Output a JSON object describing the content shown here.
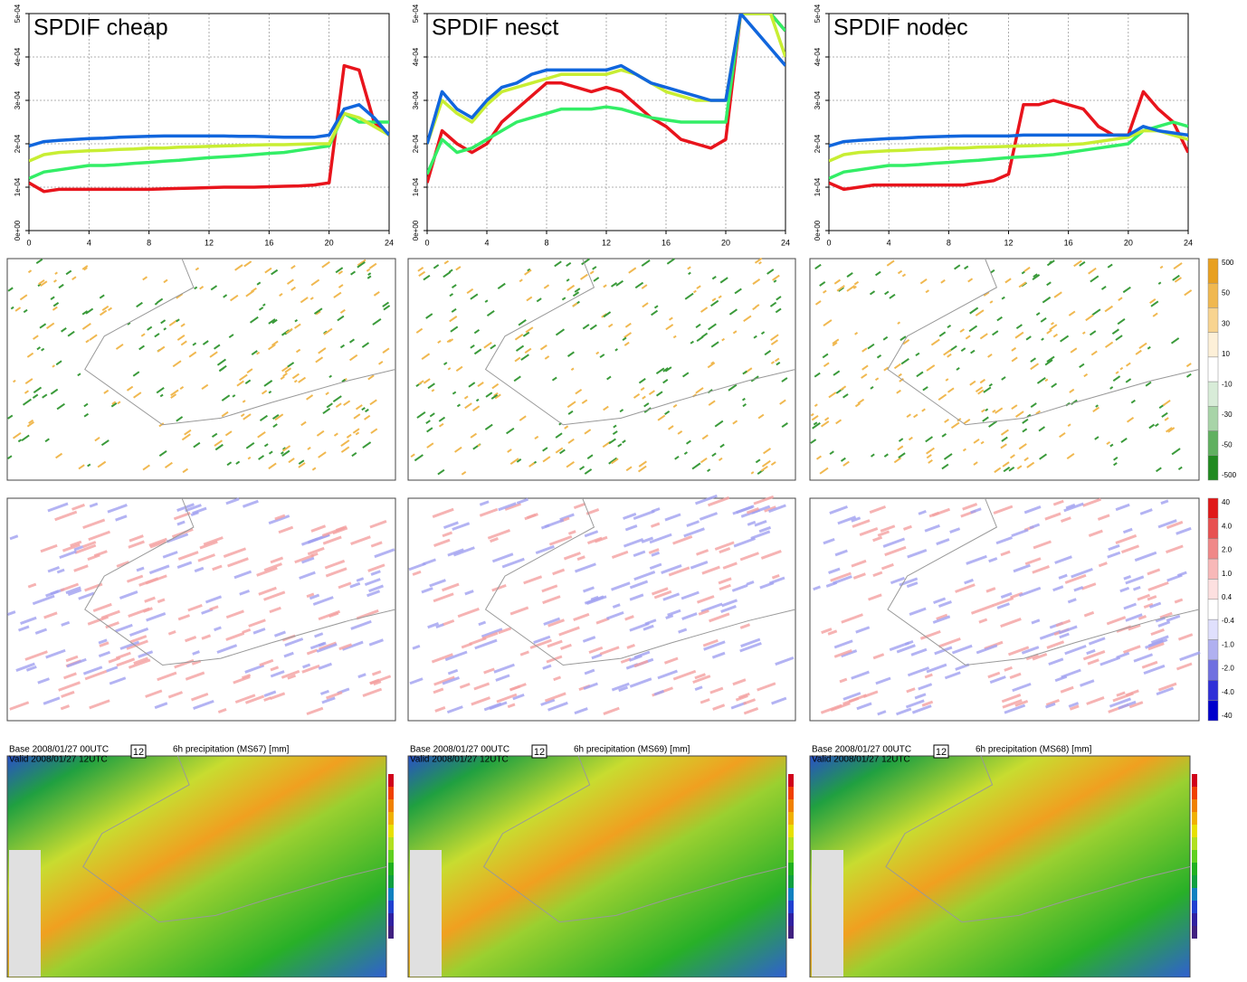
{
  "chart_data": [
    {
      "type": "line",
      "title": "SPDIF cheap",
      "x": [
        0,
        1,
        2,
        3,
        4,
        5,
        6,
        7,
        8,
        9,
        10,
        11,
        12,
        13,
        14,
        15,
        16,
        17,
        18,
        19,
        20,
        21,
        22,
        23,
        24
      ],
      "xlim": [
        0,
        24
      ],
      "xticks": [
        0,
        4,
        8,
        12,
        16,
        20,
        24
      ],
      "ylim": [
        0,
        0.0005
      ],
      "yticks": [
        {
          "value": 0,
          "label": "0e+00"
        },
        {
          "value": 0.0001,
          "label": "1e-04"
        },
        {
          "value": 0.0002,
          "label": "2e-04"
        },
        {
          "value": 0.0003,
          "label": "3e-04"
        },
        {
          "value": 0.0004,
          "label": "4e-04"
        },
        {
          "value": 0.0005,
          "label": "5e-04"
        }
      ],
      "grid": true,
      "series": [
        {
          "color": "#e8141c",
          "values": [
            0.00011,
            9e-05,
            9.5e-05,
            9.5e-05,
            9.5e-05,
            9.5e-05,
            9.5e-05,
            9.5e-05,
            9.5e-05,
            9.6e-05,
            9.7e-05,
            9.8e-05,
            9.9e-05,
            0.0001,
            0.0001,
            0.0001,
            0.000101,
            0.000102,
            0.000103,
            0.000105,
            0.00011,
            0.00038,
            0.00037,
            0.00025,
            0.00022
          ]
        },
        {
          "color": "#33ee66",
          "values": [
            0.00012,
            0.000135,
            0.00014,
            0.000145,
            0.00015,
            0.00015,
            0.000152,
            0.000155,
            0.000157,
            0.00016,
            0.000162,
            0.000165,
            0.000168,
            0.00017,
            0.000172,
            0.000175,
            0.000178,
            0.00018,
            0.000185,
            0.00019,
            0.000195,
            0.00027,
            0.00025,
            0.00025,
            0.00025
          ]
        },
        {
          "color": "#c8ee33",
          "values": [
            0.00016,
            0.000175,
            0.00018,
            0.000182,
            0.000184,
            0.000185,
            0.000187,
            0.000188,
            0.00019,
            0.00019,
            0.000192,
            0.000193,
            0.000194,
            0.000195,
            0.000196,
            0.000197,
            0.000198,
            0.000198,
            0.000199,
            0.0002,
            0.0002,
            0.00027,
            0.00026,
            0.00024,
            0.00022
          ]
        },
        {
          "color": "#1166dd",
          "values": [
            0.000195,
            0.000205,
            0.000208,
            0.00021,
            0.000212,
            0.000213,
            0.000215,
            0.000216,
            0.000217,
            0.000218,
            0.000218,
            0.000218,
            0.000218,
            0.000218,
            0.000217,
            0.000217,
            0.000216,
            0.000215,
            0.000215,
            0.000215,
            0.00022,
            0.00028,
            0.00029,
            0.00026,
            0.00022
          ]
        }
      ]
    },
    {
      "type": "line",
      "title": "SPDIF nesct",
      "x": [
        0,
        1,
        2,
        3,
        4,
        5,
        6,
        7,
        8,
        9,
        10,
        11,
        12,
        13,
        14,
        15,
        16,
        17,
        18,
        19,
        20,
        21,
        22,
        23,
        24
      ],
      "xlim": [
        0,
        24
      ],
      "xticks": [
        0,
        4,
        8,
        12,
        16,
        20,
        24
      ],
      "ylim": [
        0,
        0.0005
      ],
      "yticks": [
        {
          "value": 0,
          "label": "0e+00"
        },
        {
          "value": 0.0001,
          "label": "1e-04"
        },
        {
          "value": 0.0002,
          "label": "2e-04"
        },
        {
          "value": 0.0003,
          "label": "3e-04"
        },
        {
          "value": 0.0004,
          "label": "4e-04"
        },
        {
          "value": 0.0005,
          "label": "5e-04"
        }
      ],
      "grid": true,
      "series": [
        {
          "color": "#e8141c",
          "values": [
            0.00011,
            0.00023,
            0.0002,
            0.00018,
            0.0002,
            0.00025,
            0.00028,
            0.00031,
            0.00034,
            0.00034,
            0.00033,
            0.00032,
            0.00033,
            0.00032,
            0.00029,
            0.00026,
            0.00024,
            0.00021,
            0.0002,
            0.00019,
            0.00021,
            0.0005,
            0.0005,
            0.0005,
            0.00046
          ]
        },
        {
          "color": "#33ee66",
          "values": [
            0.00013,
            0.00021,
            0.00018,
            0.00019,
            0.00021,
            0.00023,
            0.00025,
            0.00026,
            0.00027,
            0.00028,
            0.00028,
            0.00028,
            0.000285,
            0.00028,
            0.00027,
            0.00026,
            0.000255,
            0.00025,
            0.00025,
            0.00025,
            0.00025,
            0.0005,
            0.0005,
            0.0005,
            0.00046
          ]
        },
        {
          "color": "#c8ee33",
          "values": [
            0.0002,
            0.0003,
            0.00027,
            0.00025,
            0.00029,
            0.00032,
            0.00033,
            0.00034,
            0.00035,
            0.00036,
            0.00036,
            0.00036,
            0.00036,
            0.00037,
            0.00036,
            0.00034,
            0.00032,
            0.00031,
            0.0003,
            0.0003,
            0.0003,
            0.0005,
            0.0005,
            0.0005,
            0.0004
          ]
        },
        {
          "color": "#1166dd",
          "values": [
            0.0002,
            0.00032,
            0.00028,
            0.00026,
            0.0003,
            0.00033,
            0.00034,
            0.00036,
            0.00037,
            0.00037,
            0.00037,
            0.00037,
            0.00037,
            0.00038,
            0.00036,
            0.00034,
            0.00033,
            0.00032,
            0.00031,
            0.0003,
            0.0003,
            0.0005,
            0.00046,
            0.00042,
            0.00038
          ]
        }
      ]
    },
    {
      "type": "line",
      "title": "SPDIF nodec",
      "x": [
        0,
        1,
        2,
        3,
        4,
        5,
        6,
        7,
        8,
        9,
        10,
        11,
        12,
        13,
        14,
        15,
        16,
        17,
        18,
        19,
        20,
        21,
        22,
        23,
        24
      ],
      "xlim": [
        0,
        24
      ],
      "xticks": [
        0,
        4,
        8,
        12,
        16,
        20,
        24
      ],
      "ylim": [
        0,
        0.0005
      ],
      "yticks": [
        {
          "value": 0,
          "label": "0e+00"
        },
        {
          "value": 0.0001,
          "label": "1e-04"
        },
        {
          "value": 0.0002,
          "label": "2e-04"
        },
        {
          "value": 0.0003,
          "label": "3e-04"
        },
        {
          "value": 0.0004,
          "label": "4e-04"
        },
        {
          "value": 0.0005,
          "label": "5e-04"
        }
      ],
      "grid": true,
      "series": [
        {
          "color": "#e8141c",
          "values": [
            0.00011,
            9.5e-05,
            0.0001,
            0.000105,
            0.000105,
            0.000105,
            0.000105,
            0.000105,
            0.000105,
            0.000105,
            0.00011,
            0.000115,
            0.00013,
            0.00029,
            0.00029,
            0.0003,
            0.00029,
            0.00028,
            0.00024,
            0.00022,
            0.00022,
            0.00032,
            0.00028,
            0.00025,
            0.00018
          ]
        },
        {
          "color": "#33ee66",
          "values": [
            0.00012,
            0.000135,
            0.00014,
            0.000145,
            0.00015,
            0.00015,
            0.000152,
            0.000155,
            0.000157,
            0.00016,
            0.000162,
            0.000165,
            0.000168,
            0.00017,
            0.000172,
            0.000175,
            0.00018,
            0.000185,
            0.00019,
            0.000195,
            0.0002,
            0.00023,
            0.00024,
            0.00025,
            0.00024
          ]
        },
        {
          "color": "#c8ee33",
          "values": [
            0.00016,
            0.000175,
            0.00018,
            0.000182,
            0.000184,
            0.000185,
            0.000187,
            0.000188,
            0.00019,
            0.00019,
            0.000192,
            0.000193,
            0.000194,
            0.000195,
            0.000196,
            0.000197,
            0.000198,
            0.0002,
            0.000205,
            0.00021,
            0.000215,
            0.00023,
            0.00023,
            0.00022,
            0.00021
          ]
        },
        {
          "color": "#1166dd",
          "values": [
            0.000195,
            0.000205,
            0.000208,
            0.00021,
            0.000212,
            0.000213,
            0.000215,
            0.000216,
            0.000217,
            0.000218,
            0.000218,
            0.000218,
            0.000218,
            0.00022,
            0.00022,
            0.00022,
            0.00022,
            0.00022,
            0.00022,
            0.00022,
            0.00022,
            0.00024,
            0.00023,
            0.000225,
            0.00022
          ]
        }
      ]
    }
  ],
  "colorbars": [
    {
      "labels": [
        "500",
        "50",
        "30",
        "10",
        "-10",
        "-30",
        "-50",
        "-500"
      ],
      "colors": [
        "#e8a020",
        "#f0b850",
        "#f8d490",
        "#fdf0d8",
        "#ffffff",
        "#d8ecd8",
        "#a8d4a8",
        "#60b060",
        "#208a20"
      ]
    },
    {
      "labels": [
        "40",
        "4.0",
        "2.0",
        "1.0",
        "0.4",
        "-0.4",
        "-1.0",
        "-2.0",
        "-4.0",
        "-40"
      ],
      "colors": [
        "#e01818",
        "#e85050",
        "#f08888",
        "#f8b8b8",
        "#fde0e0",
        "#ffffff",
        "#e0e0fd",
        "#b0b0f0",
        "#7070e0",
        "#3030d8",
        "#0000cc"
      ]
    }
  ],
  "precip_panels": [
    {
      "base": "Base 2008/01/27 00UTC",
      "valid": "Valid 2008/01/27 12UTC",
      "step": "12",
      "title": "6h precipitation (MS67) [mm]"
    },
    {
      "base": "Base 2008/01/27 00UTC",
      "valid": "Valid 2008/01/27 12UTC",
      "step": "12",
      "title": "6h precipitation (MS69) [mm]"
    },
    {
      "base": "Base 2008/01/27 00UTC",
      "valid": "Valid 2008/01/27 12UTC",
      "step": "12",
      "title": "6h precipitation (MS68) [mm]"
    }
  ]
}
